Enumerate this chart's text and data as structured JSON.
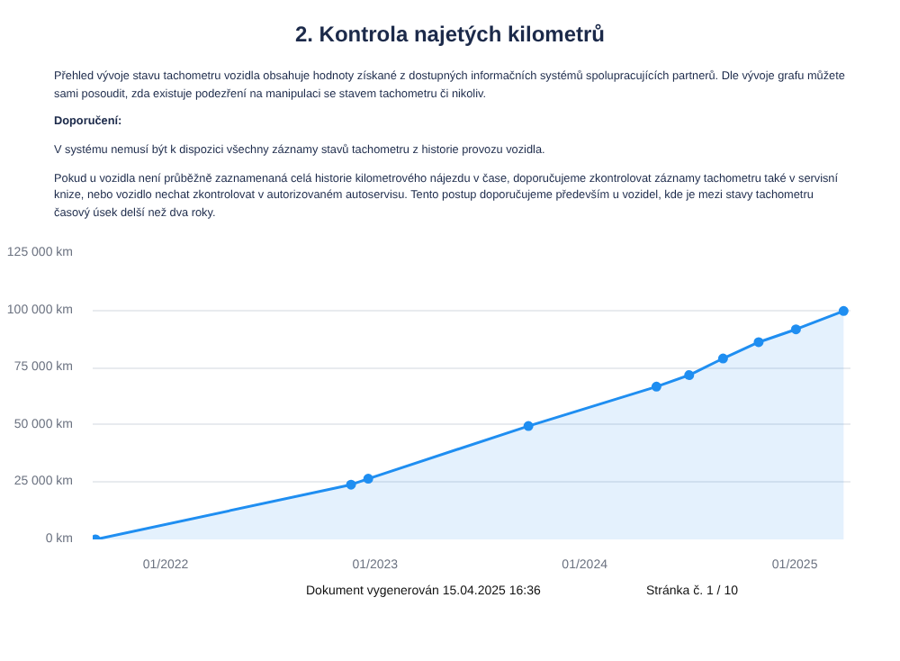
{
  "chart_data": {
    "type": "area",
    "title": "2. Kontrola najetých kilometrů",
    "subtitle": "Přehled vývoje stavu tachometru vozidla obsahuje hodnoty získané z dostupných informačních systémů spolupracujících partnerů. Dle vývoje grafu můžete sami posoudit, zda existuje podezření na manipulaci se stavem tachometru či nikoliv.",
    "annotations": [
      "Doporučení:",
      "V systému nemusí být k dispozici všechny záznamy stavů tachometru z historie provozu vozidla.",
      "Pokud u vozidla není průběžně zaznamenaná celá historie kilometrového nájezdu v čase, doporučujeme zkontrolovat záznamy tachometru také v servisní knize, nebo vozidlo nechat zkontrolovat v autorizovaném autoservisu. Tento postup doporučujeme především u vozidel, kde je mezi stavy tachometru časový úsek delší než dva roky.",
      "Dokument vygenerován 15.04.2025 16:36",
      "Stránka č. 1 / 10"
    ],
    "x": [
      "2021-09-01",
      "2022-11-20",
      "2022-12-20",
      "2023-09-25",
      "2024-05-05",
      "2024-07-01",
      "2024-08-29",
      "2024-10-30",
      "2025-01-03",
      "2025-03-27"
    ],
    "series": [
      {
        "color": "#1f8ef1",
        "values": [
          0,
          23900,
          26500,
          49500,
          66700,
          71700,
          79000,
          86100,
          91700,
          99700
        ]
      }
    ],
    "xlim": [
      "2021-08-27",
      "2025-04-08"
    ],
    "xticks": [
      {
        "value": "2022-01-01",
        "label": "01/2022"
      },
      {
        "value": "2023-01-01",
        "label": "01/2023"
      },
      {
        "value": "2024-01-01",
        "label": "01/2024"
      },
      {
        "value": "2025-01-01",
        "label": "01/2025"
      }
    ],
    "ylim": [
      0,
      125000
    ],
    "yticks": [
      {
        "value": 0,
        "label": "0 km"
      },
      {
        "value": 25000,
        "label": "25 000 km"
      },
      {
        "value": 50000,
        "label": "50 000 km"
      },
      {
        "value": 75000,
        "label": "75 000 km"
      },
      {
        "value": 100000,
        "label": "100 000 km"
      },
      {
        "value": 125000,
        "label": "125 000 km"
      }
    ],
    "grid": "y",
    "marker": "circle"
  }
}
